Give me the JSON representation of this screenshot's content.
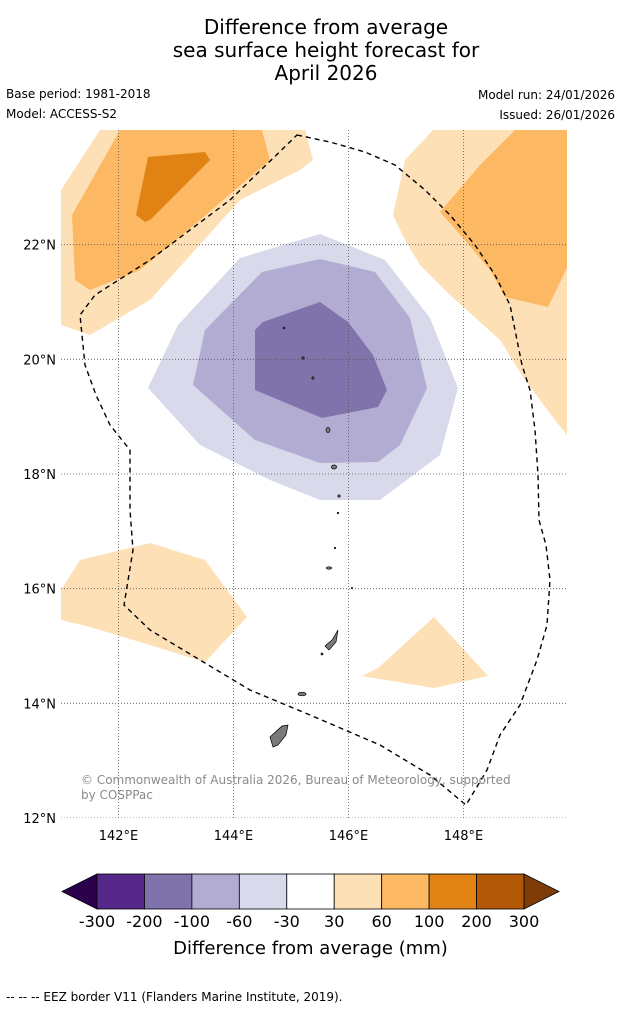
{
  "title_lines": [
    "Difference from average",
    "sea surface height forecast for",
    "April 2026"
  ],
  "base_period": "Base period: 1981-2018",
  "model": "Model: ACCESS-S2",
  "model_run": "Model run: 24/01/2026",
  "issued": "Issued: 26/01/2026",
  "map": {
    "lon_range": [
      141,
      149.8
    ],
    "lat_range": [
      12,
      24
    ],
    "lat_ticks": [
      {
        "value": 22,
        "label": "22°N"
      },
      {
        "value": 20,
        "label": "20°N"
      },
      {
        "value": 18,
        "label": "18°N"
      },
      {
        "value": 16,
        "label": "16°N"
      },
      {
        "value": 14,
        "label": "14°N"
      },
      {
        "value": 12,
        "label": "12°N"
      }
    ],
    "lon_ticks": [
      {
        "value": 142,
        "label": "142°E"
      },
      {
        "value": 144,
        "label": "144°E"
      },
      {
        "value": 146,
        "label": "146°E"
      },
      {
        "value": 148,
        "label": "148°E"
      }
    ],
    "copyright_lines": [
      "© Commonwealth of Australia 2026, Bureau of Meteorology, supported",
      "by COSPPac"
    ]
  },
  "colorbar": {
    "title": "Difference from average (mm)",
    "tick_labels": [
      "-300",
      "-200",
      "-100",
      "-60",
      "-30",
      "30",
      "60",
      "100",
      "200",
      "300"
    ],
    "colors": [
      "#542788",
      "#8073ac",
      "#b2abd2",
      "#d8daeb",
      "#ffffff",
      "#fee0b6",
      "#fdb863",
      "#e08214",
      "#b35806"
    ],
    "under_color": "#2d004b",
    "over_color": "#7f3b08"
  },
  "footer": "-- -- -- EEZ border V11 (Flanders Marine Institute, 2019)."
}
